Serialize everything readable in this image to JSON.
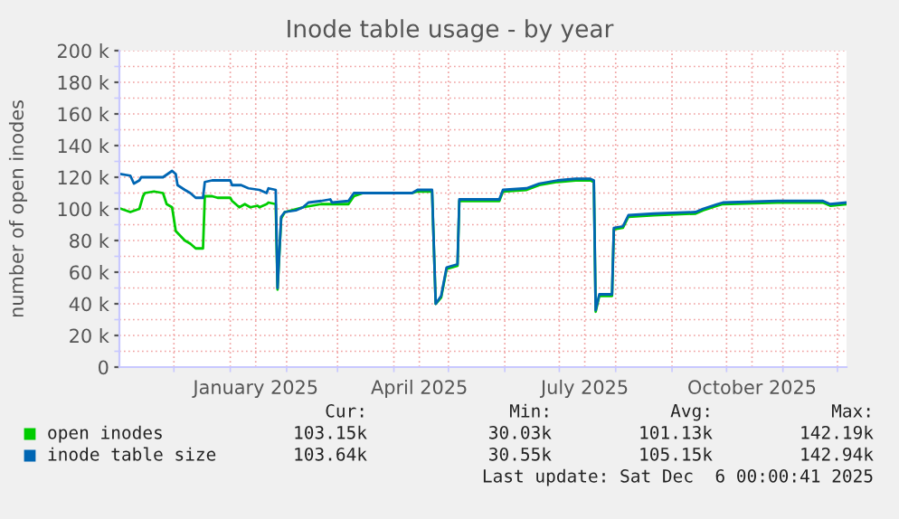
{
  "chart_data": {
    "type": "line",
    "title": "Inode table usage - by year",
    "ylabel": "number of open inodes",
    "xlim": [
      "2024-11-01",
      "2025-12-06"
    ],
    "xticks": [
      {
        "value": "2024-12-01",
        "label": null
      },
      {
        "value": "2025-01-01",
        "label": null
      },
      {
        "value": "2025-01-15",
        "label": "January 2025"
      },
      {
        "value": "2025-02-01",
        "label": null
      },
      {
        "value": "2025-03-01",
        "label": null
      },
      {
        "value": "2025-04-01",
        "label": null
      },
      {
        "value": "2025-04-15",
        "label": "April 2025"
      },
      {
        "value": "2025-05-01",
        "label": null
      },
      {
        "value": "2025-06-01",
        "label": null
      },
      {
        "value": "2025-07-01",
        "label": null
      },
      {
        "value": "2025-07-15",
        "label": "July 2025"
      },
      {
        "value": "2025-08-01",
        "label": null
      },
      {
        "value": "2025-09-01",
        "label": null
      },
      {
        "value": "2025-10-01",
        "label": null
      },
      {
        "value": "2025-10-15",
        "label": "October 2025"
      },
      {
        "value": "2025-11-01",
        "label": null
      },
      {
        "value": "2025-12-01",
        "label": null
      }
    ],
    "ylim": [
      0,
      200000
    ],
    "yticks": [
      0,
      {
        "value": 10000,
        "label": null
      },
      {
        "value": 20000,
        "label": "20 k"
      },
      {
        "value": 30000,
        "label": null
      },
      {
        "value": 40000,
        "label": "40 k"
      },
      {
        "value": 50000,
        "label": null
      },
      {
        "value": 60000,
        "label": "60 k"
      },
      {
        "value": 70000,
        "label": null
      },
      {
        "value": 80000,
        "label": "80 k"
      },
      {
        "value": 90000,
        "label": null
      },
      {
        "value": 100000,
        "label": "100 k"
      },
      {
        "value": 110000,
        "label": null
      },
      {
        "value": 120000,
        "label": "120 k"
      },
      {
        "value": 130000,
        "label": null
      },
      {
        "value": 140000,
        "label": "140 k"
      },
      {
        "value": 150000,
        "label": null
      },
      {
        "value": 160000,
        "label": "160 k"
      },
      {
        "value": 170000,
        "label": null
      },
      {
        "value": 180000,
        "label": "180 k"
      },
      {
        "value": 190000,
        "label": null
      },
      {
        "value": 200000,
        "label": "200 k"
      }
    ],
    "grid": true,
    "legend": "bottom left",
    "line_style": "solid",
    "marker": "none",
    "series": [
      {
        "name": "open inodes",
        "color": "#00cc00",
        "x": [
          "2024-11-02",
          "2024-11-07",
          "2024-11-12",
          "2024-11-14",
          "2024-11-15",
          "2024-11-20",
          "2024-11-25",
          "2024-11-27",
          "2024-11-30",
          "2024-12-02",
          "2024-12-07",
          "2024-12-10",
          "2024-12-13",
          "2024-12-17",
          "2024-12-18",
          "2024-12-22",
          "2024-12-25",
          "2025-01-01",
          "2025-01-02",
          "2025-01-06",
          "2025-01-09",
          "2025-01-12",
          "2025-01-16",
          "2025-01-17",
          "2025-01-21",
          "2025-01-22",
          "2025-01-26",
          "2025-01-27",
          "2025-01-29",
          "2025-01-31",
          "2025-02-10",
          "2025-02-20",
          "2025-03-07",
          "2025-03-10",
          "2025-03-15",
          "2025-04-11",
          "2025-04-14",
          "2025-04-22",
          "2025-04-24",
          "2025-04-27",
          "2025-04-30",
          "2025-05-06",
          "2025-05-07",
          "2025-05-29",
          "2025-05-31",
          "2025-06-13",
          "2025-06-20",
          "2025-06-30",
          "2025-07-10",
          "2025-07-18",
          "2025-07-20",
          "2025-07-21",
          "2025-07-23",
          "2025-07-30",
          "2025-07-31",
          "2025-08-05",
          "2025-08-08",
          "2025-08-22",
          "2025-09-14",
          "2025-09-18",
          "2025-09-26",
          "2025-09-29",
          "2025-10-29",
          "2025-11-23",
          "2025-11-27",
          "2025-12-06"
        ],
        "values": [
          100000,
          98000,
          100000,
          108000,
          110000,
          111000,
          110000,
          103000,
          101000,
          86000,
          80000,
          78000,
          75000,
          75000,
          108000,
          108000,
          107000,
          107000,
          105000,
          101000,
          103000,
          101000,
          102000,
          101000,
          103000,
          104000,
          103000,
          49000,
          94000,
          98000,
          101000,
          103000,
          103000,
          108000,
          110000,
          110000,
          111000,
          111000,
          40000,
          44000,
          62000,
          64000,
          105000,
          105000,
          111000,
          112000,
          115000,
          117000,
          118000,
          118000,
          117000,
          35000,
          45000,
          45000,
          87000,
          88000,
          95000,
          96000,
          97000,
          99000,
          102000,
          103000,
          104000,
          104000,
          102000,
          103000
        ]
      },
      {
        "name": "inode table size",
        "color": "#0066b3",
        "x": [
          "2024-11-02",
          "2024-11-07",
          "2024-11-09",
          "2024-11-12",
          "2024-11-13",
          "2024-11-25",
          "2024-11-30",
          "2024-12-02",
          "2024-12-03",
          "2024-12-07",
          "2024-12-10",
          "2024-12-13",
          "2024-12-17",
          "2024-12-18",
          "2024-12-22",
          "2025-01-01",
          "2025-01-02",
          "2025-01-07",
          "2025-01-11",
          "2025-01-17",
          "2025-01-21",
          "2025-01-22",
          "2025-01-26",
          "2025-01-27",
          "2025-01-29",
          "2025-01-31",
          "2025-02-06",
          "2025-02-10",
          "2025-02-13",
          "2025-02-20",
          "2025-02-25",
          "2025-02-26",
          "2025-03-07",
          "2025-03-10",
          "2025-03-28",
          "2025-04-11",
          "2025-04-14",
          "2025-04-22",
          "2025-04-24",
          "2025-04-27",
          "2025-04-30",
          "2025-05-06",
          "2025-05-07",
          "2025-05-29",
          "2025-05-31",
          "2025-06-13",
          "2025-06-20",
          "2025-06-30",
          "2025-07-10",
          "2025-07-18",
          "2025-07-20",
          "2025-07-21",
          "2025-07-23",
          "2025-07-30",
          "2025-07-31",
          "2025-08-05",
          "2025-08-08",
          "2025-08-22",
          "2025-09-14",
          "2025-09-18",
          "2025-09-26",
          "2025-09-29",
          "2025-10-29",
          "2025-11-23",
          "2025-11-27",
          "2025-12-06"
        ],
        "values": [
          122000,
          121000,
          116000,
          118000,
          120000,
          120000,
          124000,
          122000,
          115000,
          112000,
          110000,
          107000,
          107000,
          117000,
          118000,
          118000,
          115000,
          115000,
          113000,
          112000,
          110000,
          113000,
          112000,
          50000,
          95000,
          98000,
          99000,
          101000,
          104000,
          105000,
          106000,
          104000,
          105000,
          110000,
          110000,
          110000,
          112000,
          112000,
          40000,
          45000,
          63000,
          65000,
          106000,
          106000,
          112000,
          113000,
          116000,
          118000,
          119000,
          119000,
          118000,
          36000,
          46000,
          46000,
          88000,
          89000,
          96000,
          97000,
          98000,
          100000,
          103000,
          104000,
          105000,
          105000,
          103000,
          104000
        ]
      }
    ],
    "annotations": [
      "Cur:",
      "Min:",
      "Avg:",
      "Max:",
      "103.15k",
      "30.03k",
      "101.13k",
      "142.19k",
      "103.64k",
      "30.55k",
      "105.15k",
      "142.94k",
      "Last update: Sat Dec  6 00:00:41 2025"
    ]
  }
}
